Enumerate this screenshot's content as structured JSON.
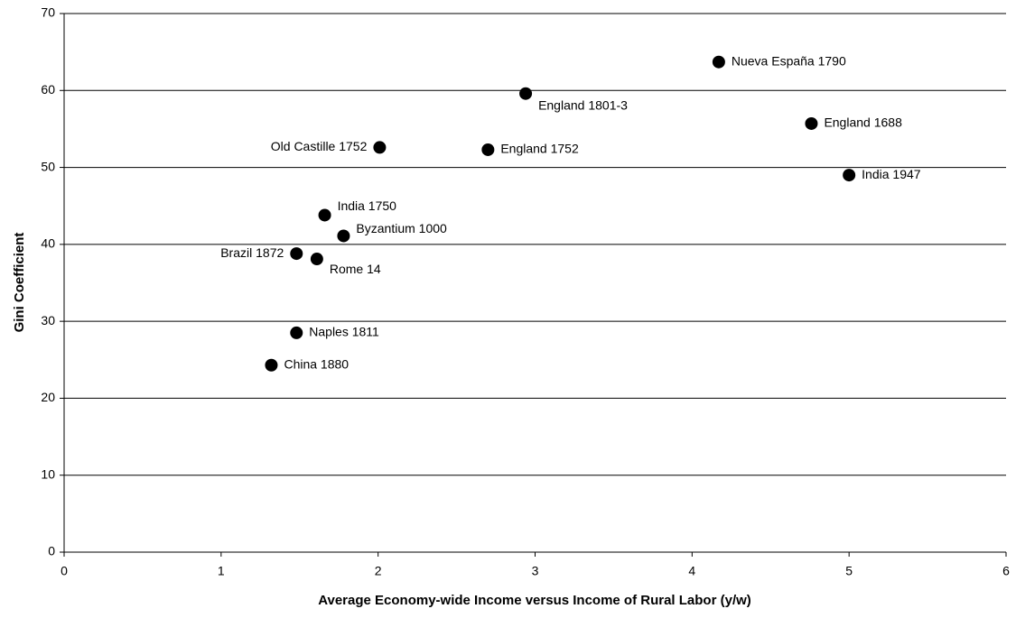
{
  "chart_data": {
    "type": "scatter",
    "x_label": "Average Economy-wide Income versus Income of Rural Labor (y/w)",
    "y_label": "Gini Coefficient",
    "x": [
      4.17,
      2.94,
      4.76,
      2.01,
      2.7,
      5.0,
      1.66,
      1.78,
      1.48,
      1.61,
      1.48,
      1.32
    ],
    "values": [
      63.7,
      59.6,
      55.7,
      52.6,
      52.3,
      49.0,
      43.8,
      41.1,
      38.8,
      38.1,
      28.5,
      24.3
    ],
    "point_labels": [
      "Nueva España 1790",
      "England 1801-3",
      "England 1688",
      "Old Castille 1752",
      "England 1752",
      "India 1947",
      "India 1750",
      "Byzantium 1000",
      "Brazil 1872",
      "Rome 14",
      "Naples 1811",
      "China 1880"
    ],
    "color": "#000000",
    "xlim": [
      0,
      6
    ],
    "xticks": [
      0,
      1,
      2,
      3,
      4,
      5,
      6
    ],
    "ylim": [
      0,
      70
    ],
    "yticks": [
      0,
      10,
      20,
      30,
      40,
      50,
      60,
      70
    ],
    "grid": true
  }
}
